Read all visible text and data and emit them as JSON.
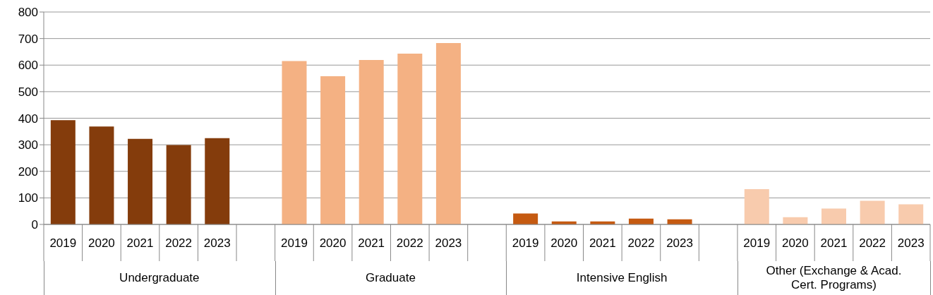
{
  "chart_data": {
    "type": "bar",
    "categories": [
      "2019",
      "2020",
      "2021",
      "2022",
      "2023",
      null,
      "2019",
      "2020",
      "2021",
      "2022",
      "2023",
      null,
      "2019",
      "2020",
      "2021",
      "2022",
      "2023",
      null,
      "2019",
      "2020",
      "2021",
      "2022",
      "2023"
    ],
    "values": [
      393,
      369,
      322,
      299,
      325,
      null,
      615,
      558,
      619,
      643,
      683,
      null,
      41,
      11,
      11,
      22,
      19,
      null,
      133,
      27,
      60,
      89,
      76
    ],
    "colors": [
      "#843c0c",
      "#843c0c",
      "#843c0c",
      "#843c0c",
      "#843c0c",
      null,
      "#f4b183",
      "#f4b183",
      "#f4b183",
      "#f4b183",
      "#f4b183",
      null,
      "#c55a11",
      "#c55a11",
      "#c55a11",
      "#c55a11",
      "#c55a11",
      null,
      "#f8cbad",
      "#f8cbad",
      "#f8cbad",
      "#f8cbad",
      "#f8cbad"
    ],
    "annotations": [
      "Undergraduate",
      "Graduate",
      "Intensive English",
      "Other (Exchange & Acad. Cert. Programs)"
    ],
    "ylim": [
      0,
      800
    ],
    "yticks": [
      0,
      100,
      200,
      300,
      400,
      500,
      600,
      700,
      800
    ],
    "grid": "y"
  }
}
